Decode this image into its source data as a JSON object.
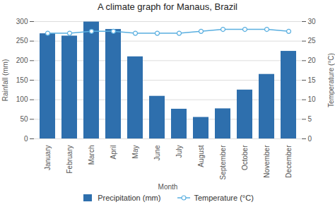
{
  "chart_data": {
    "type": "bar",
    "title": "A climate graph for Manaus, Brazil",
    "categories": [
      "January",
      "February",
      "March",
      "April",
      "May",
      "June",
      "July",
      "August",
      "September",
      "October",
      "November",
      "December"
    ],
    "xlabel": "Month",
    "ylabel": "Rainfall (mm)",
    "y2label": "Temperature (°C)",
    "series": [
      {
        "name": "Precipitation (mm)",
        "type": "bar",
        "color": "#2e6fad",
        "values": [
          269,
          263,
          299,
          280,
          210,
          109,
          76,
          55,
          77,
          125,
          165,
          224
        ]
      },
      {
        "name": "Temperature (°C)",
        "type": "line",
        "axis": "y2",
        "color": "#5aafe0",
        "marker": "circle",
        "values": [
          27.0,
          27.0,
          27.5,
          27.5,
          27.0,
          27.0,
          27.0,
          27.5,
          28.0,
          28.0,
          28.0,
          27.5
        ]
      }
    ],
    "ylim": [
      0,
      300
    ],
    "yticks": [
      0,
      50,
      100,
      150,
      200,
      250,
      300
    ],
    "y2lim": [
      0,
      30
    ],
    "y2ticks": [
      0,
      5,
      10,
      15,
      20,
      25,
      30
    ],
    "grid": true,
    "legend": "bottom"
  }
}
